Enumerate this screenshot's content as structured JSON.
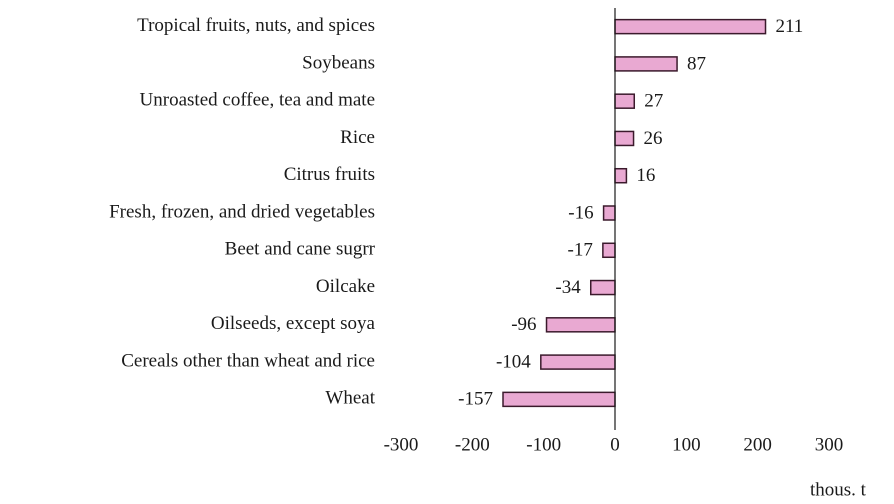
{
  "chart_data": {
    "type": "barh",
    "categories": [
      "Tropical fruits, nuts, and spices",
      "Soybeans",
      "Unroasted coffee, tea and mate",
      "Rice",
      "Citrus fruits",
      "Fresh, frozen, and dried vegetables",
      "Beet and cane sugrr",
      "Oilcake",
      "Oilseeds, except soya",
      "Cereals other than wheat and rice",
      "Wheat"
    ],
    "values": [
      211,
      87,
      27,
      26,
      16,
      -16,
      -17,
      -34,
      -96,
      -104,
      -157
    ],
    "color": "#e9a9d2",
    "edge_color": "#3b1a2c",
    "xlim": [
      -300,
      300
    ],
    "xticks": [
      -300,
      -200,
      -100,
      0,
      100,
      200,
      300
    ],
    "xlabel": "thous. t",
    "grid": false
  }
}
